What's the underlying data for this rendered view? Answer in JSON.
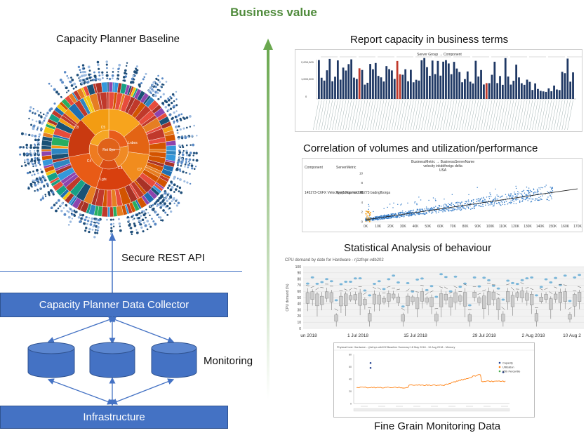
{
  "header": {
    "title": "Business value"
  },
  "left": {
    "sunburst_title": "Capacity Planner Baseline",
    "sunburst_labels": [
      "C5",
      "C4",
      "Lnbes",
      "C3",
      "Lgts",
      "C8",
      "C7",
      "Ret Sys"
    ],
    "api_label": "Secure REST API",
    "collector_label": "Capacity Planner Data Collector",
    "monitoring_label": "Monitoring",
    "infrastructure_label": "Infrastructure"
  },
  "right": {
    "report_title": "Report capacity in business terms",
    "correlation_title": "Correlation of volumes and utilization/performance",
    "statistical_title": "Statistical Analysis of behaviour",
    "fine_grain_title": "Fine Grain Monitoring Data"
  },
  "report_chart": {
    "header_text": "Server Group → Component",
    "y_ticks": [
      "2,000,000",
      "1,000,000",
      "0"
    ]
  },
  "correlation_chart": {
    "col_component": "Component",
    "col_metric": "ServerMetric",
    "subtitle_lines": [
      "BusinessMetric → BusinessServerName",
      "velocity inkddfnnigs delta",
      "USA"
    ],
    "row_component": "145273-C6FX Velocity-rj17fqpr-sv216",
    "row_metric": "%process list 145273 badngfborga",
    "y_ticks": [
      "10",
      "8",
      "6",
      "4",
      "2",
      "0"
    ]
  },
  "chart_data": [
    {
      "type": "scatter",
      "title": "Correlation of volumes and utilization/performance",
      "x_ticks": [
        "0K",
        "10K",
        "20K",
        "30K",
        "40K",
        "50K",
        "60K",
        "70K",
        "80K",
        "90K",
        "100K",
        "110K",
        "120K",
        "130K",
        "140K",
        "150K",
        "160K",
        "170K"
      ],
      "y_ticks": [
        "0",
        "2",
        "4",
        "6",
        "8",
        "10"
      ],
      "xlim": [
        0,
        170000
      ],
      "ylim": [
        0,
        11
      ],
      "trend_line": {
        "x": [
          0,
          170000
        ],
        "y": [
          0.4,
          6.8
        ]
      }
    },
    {
      "type": "box",
      "title": "CPU demand by date for Hardware - rj1zfnpr-vdb202",
      "ylabel": "CPU demand (%)",
      "y_ticks": [
        "100",
        "90",
        "80",
        "70",
        "60",
        "50",
        "40",
        "30",
        "20",
        "10",
        "0"
      ],
      "ylim": [
        0,
        100
      ],
      "x_ticks": [
        "un 2018",
        "1 Jul 2018",
        "15 Jul 2018",
        "29 Jul 2018",
        "2 Aug 2018",
        "10 Aug 2"
      ]
    },
    {
      "type": "line",
      "title": "Physical host: Hardware - rj1zfnpr-vdb202 Baseline Summary 18 May 2018 - 10 Aug 2018 - Memory",
      "legend": [
        "Capacity",
        "Utilization",
        "95th Percentile"
      ],
      "legend_colors": [
        "#1f3f8f",
        "#ff7f0e",
        "#4caf50"
      ],
      "y_ticks": [
        "80",
        "60",
        "40",
        "20",
        "0"
      ],
      "ylim": [
        0,
        80
      ]
    }
  ],
  "colors": {
    "box_fill": "#4472c4",
    "box_border": "#2f528f",
    "arrow": "#4472c4",
    "business_green": "#4e8a3a",
    "bar_navy": "#1f3864",
    "bar_red": "#c0392b",
    "scatter_blue": "#2e78c7",
    "scatter_orange": "#f39c12"
  }
}
